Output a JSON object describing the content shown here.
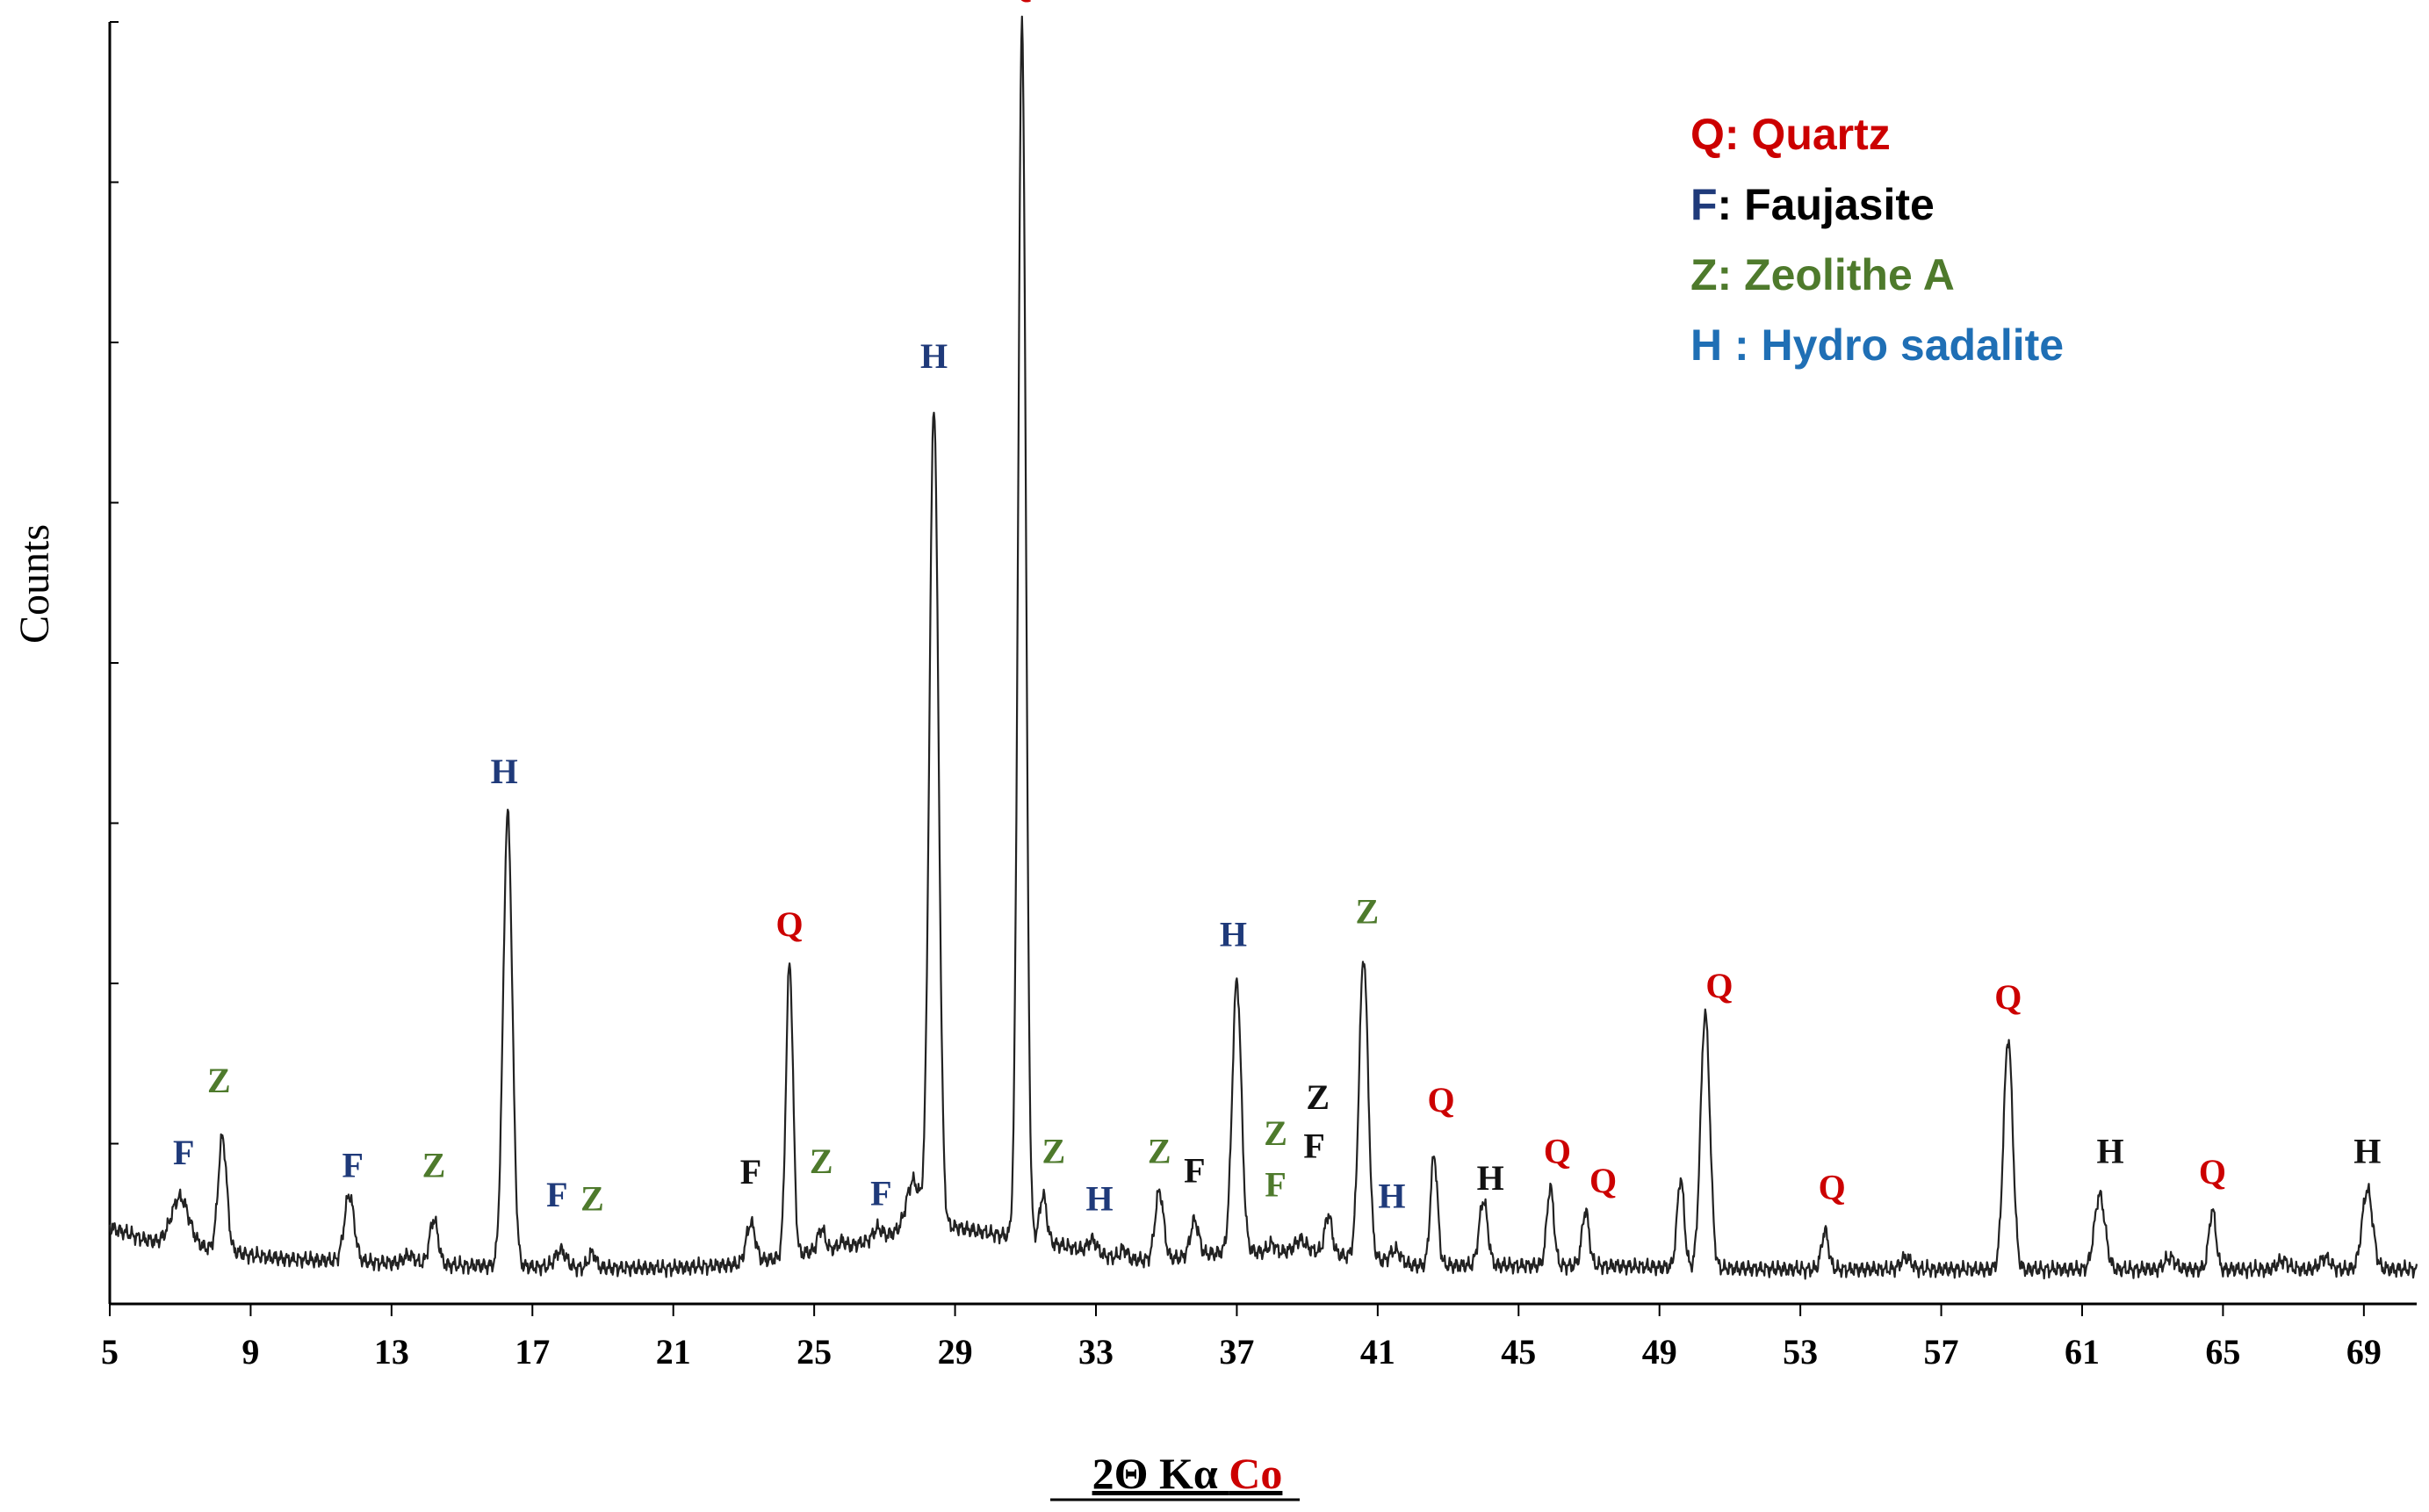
{
  "chart_data": {
    "type": "line",
    "xlabel_parts": [
      "2Θ Kα ",
      "Co"
    ],
    "ylabel": "Counts",
    "xlim": [
      5,
      70.5
    ],
    "ylim": [
      0,
      100
    ],
    "x_ticks": [
      5,
      9,
      13,
      17,
      21,
      25,
      29,
      33,
      37,
      41,
      45,
      49,
      53,
      57,
      61,
      65,
      69
    ],
    "y_minor_ticks": 8,
    "grid": false,
    "legend_position": "top-right",
    "legend": [
      {
        "text": "Q: Quartz",
        "color": "#cc0000"
      },
      {
        "prefix": "F",
        "text": ": Faujasite",
        "color": "#000000",
        "prefix_color": "#1f3a7a"
      },
      {
        "text": "Z: Zeolithe A",
        "color": "#4e7a2c"
      },
      {
        "text": "H : Hydro sadalite",
        "color": "#1f6fb5"
      }
    ],
    "colors": {
      "Q": "#cc0000",
      "F": "#1f3a7a",
      "Z": "#4e7a2c",
      "H": "#1f3a7a",
      "black": "#111111"
    },
    "baseline": [
      [
        5.0,
        6.0
      ],
      [
        6.0,
        5.0
      ],
      [
        7.0,
        4.5
      ],
      [
        8.0,
        4.3
      ],
      [
        9.0,
        3.8
      ],
      [
        10.0,
        3.5
      ],
      [
        11.0,
        3.4
      ],
      [
        12.0,
        3.3
      ],
      [
        13.0,
        3.2
      ],
      [
        14.0,
        3.1
      ],
      [
        15.0,
        3.0
      ],
      [
        17.0,
        2.9
      ],
      [
        19.0,
        2.8
      ],
      [
        21.0,
        2.8
      ],
      [
        23.0,
        3.1
      ],
      [
        24.0,
        3.6
      ],
      [
        25.0,
        4.1
      ],
      [
        26.0,
        4.5
      ],
      [
        27.0,
        5.3
      ],
      [
        28.0,
        6.2
      ],
      [
        29.0,
        6.0
      ],
      [
        30.0,
        5.5
      ],
      [
        31.0,
        5.1
      ],
      [
        32.0,
        4.6
      ],
      [
        33.0,
        3.9
      ],
      [
        34.0,
        3.4
      ],
      [
        35.0,
        3.5
      ],
      [
        36.0,
        3.8
      ],
      [
        37.0,
        4.2
      ],
      [
        38.0,
        4.0
      ],
      [
        39.0,
        4.2
      ],
      [
        40.0,
        3.8
      ],
      [
        41.0,
        3.4
      ],
      [
        42.0,
        3.0
      ],
      [
        43.0,
        3.0
      ],
      [
        45.0,
        3.0
      ],
      [
        47.0,
        3.0
      ],
      [
        50.0,
        2.8
      ],
      [
        53.0,
        2.7
      ],
      [
        57.0,
        2.7
      ],
      [
        61.0,
        2.7
      ],
      [
        65.0,
        2.7
      ],
      [
        70.5,
        2.7
      ]
    ],
    "peaks": [
      {
        "x": 7.0,
        "y": 8.3,
        "w": 0.25
      },
      {
        "x": 8.2,
        "y": 13.0,
        "w": 0.12
      },
      {
        "x": 11.8,
        "y": 8.5,
        "w": 0.14
      },
      {
        "x": 13.5,
        "y": 3.8,
        "w": 0.15
      },
      {
        "x": 14.2,
        "y": 6.6,
        "w": 0.12
      },
      {
        "x": 16.3,
        "y": 38.2,
        "w": 0.13
      },
      {
        "x": 17.8,
        "y": 4.2,
        "w": 0.15
      },
      {
        "x": 18.7,
        "y": 4.0,
        "w": 0.1
      },
      {
        "x": 23.2,
        "y": 6.3,
        "w": 0.13
      },
      {
        "x": 24.3,
        "y": 26.6,
        "w": 0.1
      },
      {
        "x": 25.2,
        "y": 5.9,
        "w": 0.1
      },
      {
        "x": 25.8,
        "y": 4.9,
        "w": 0.1
      },
      {
        "x": 26.8,
        "y": 5.9,
        "w": 0.12
      },
      {
        "x": 27.8,
        "y": 9.6,
        "w": 0.18
      },
      {
        "x": 28.4,
        "y": 70.0,
        "w": 0.13
      },
      {
        "x": 30.9,
        "y": 100.0,
        "w": 0.11
      },
      {
        "x": 31.5,
        "y": 8.5,
        "w": 0.1
      },
      {
        "x": 32.9,
        "y": 5.0,
        "w": 0.13
      },
      {
        "x": 33.8,
        "y": 4.3,
        "w": 0.1
      },
      {
        "x": 34.8,
        "y": 8.8,
        "w": 0.12
      },
      {
        "x": 35.8,
        "y": 6.5,
        "w": 0.12
      },
      {
        "x": 37.0,
        "y": 25.2,
        "w": 0.13
      },
      {
        "x": 38.0,
        "y": 4.7,
        "w": 0.1
      },
      {
        "x": 38.8,
        "y": 5.0,
        "w": 0.15
      },
      {
        "x": 39.6,
        "y": 7.0,
        "w": 0.1
      },
      {
        "x": 40.6,
        "y": 27.0,
        "w": 0.13
      },
      {
        "x": 41.5,
        "y": 4.2,
        "w": 0.15
      },
      {
        "x": 42.6,
        "y": 11.6,
        "w": 0.1
      },
      {
        "x": 44.0,
        "y": 8.1,
        "w": 0.12
      },
      {
        "x": 45.9,
        "y": 9.1,
        "w": 0.1
      },
      {
        "x": 46.9,
        "y": 7.3,
        "w": 0.1
      },
      {
        "x": 49.6,
        "y": 9.8,
        "w": 0.1
      },
      {
        "x": 50.3,
        "y": 22.7,
        "w": 0.13
      },
      {
        "x": 53.7,
        "y": 5.7,
        "w": 0.1
      },
      {
        "x": 56.0,
        "y": 3.6,
        "w": 0.15
      },
      {
        "x": 58.9,
        "y": 20.7,
        "w": 0.13
      },
      {
        "x": 61.5,
        "y": 8.5,
        "w": 0.15
      },
      {
        "x": 63.5,
        "y": 3.6,
        "w": 0.15
      },
      {
        "x": 64.7,
        "y": 7.3,
        "w": 0.1
      },
      {
        "x": 66.7,
        "y": 3.4,
        "w": 0.15
      },
      {
        "x": 67.9,
        "y": 3.6,
        "w": 0.15
      },
      {
        "x": 69.1,
        "y": 8.9,
        "w": 0.15
      }
    ],
    "annotations": [
      {
        "text": "F",
        "x": 7.1,
        "y": 10.9,
        "c": "F"
      },
      {
        "text": "Z",
        "x": 8.1,
        "y": 16.5,
        "c": "Z"
      },
      {
        "text": "F",
        "x": 11.9,
        "y": 9.9,
        "c": "F"
      },
      {
        "text": "Z",
        "x": 14.2,
        "y": 9.9,
        "c": "Z"
      },
      {
        "text": "H",
        "x": 16.2,
        "y": 40.6,
        "c": "H"
      },
      {
        "text": "F",
        "x": 17.7,
        "y": 7.6,
        "c": "F"
      },
      {
        "text": "Z",
        "x": 18.7,
        "y": 7.3,
        "c": "Z"
      },
      {
        "text": "F",
        "x": 23.2,
        "y": 9.4,
        "c": "black"
      },
      {
        "text": "Q",
        "x": 24.3,
        "y": 28.7,
        "c": "Q"
      },
      {
        "text": "Z",
        "x": 25.2,
        "y": 10.2,
        "c": "Z"
      },
      {
        "text": "F",
        "x": 26.9,
        "y": 7.7,
        "c": "F"
      },
      {
        "text": "H",
        "x": 28.4,
        "y": 73.0,
        "c": "H"
      },
      {
        "text": "Q",
        "x": 30.8,
        "y": 102.0,
        "c": "Q"
      },
      {
        "text": "Z",
        "x": 31.8,
        "y": 11.0,
        "c": "Z"
      },
      {
        "text": "H",
        "x": 33.1,
        "y": 7.3,
        "c": "H"
      },
      {
        "text": "Z",
        "x": 34.8,
        "y": 11.0,
        "c": "Z"
      },
      {
        "text": "F",
        "x": 35.8,
        "y": 9.5,
        "c": "black"
      },
      {
        "text": "H",
        "x": 36.9,
        "y": 27.9,
        "c": "H"
      },
      {
        "text": "Z",
        "x": 38.1,
        "y": 12.4,
        "c": "Z"
      },
      {
        "text": "F",
        "x": 38.1,
        "y": 8.4,
        "c": "Z"
      },
      {
        "text": "Z",
        "x": 39.3,
        "y": 15.2,
        "c": "black"
      },
      {
        "text": "F",
        "x": 39.2,
        "y": 11.4,
        "c": "black"
      },
      {
        "text": "Z",
        "x": 40.7,
        "y": 29.7,
        "c": "Z"
      },
      {
        "text": "H",
        "x": 41.4,
        "y": 7.5,
        "c": "H"
      },
      {
        "text": "Q",
        "x": 42.8,
        "y": 15.0,
        "c": "Q"
      },
      {
        "text": "H",
        "x": 44.2,
        "y": 8.9,
        "c": "black"
      },
      {
        "text": "Q",
        "x": 46.1,
        "y": 11.0,
        "c": "Q"
      },
      {
        "text": "Q",
        "x": 47.4,
        "y": 8.7,
        "c": "Q"
      },
      {
        "text": "Q",
        "x": 50.7,
        "y": 23.9,
        "c": "Q"
      },
      {
        "text": "Q",
        "x": 53.9,
        "y": 8.2,
        "c": "Q"
      },
      {
        "text": "Q",
        "x": 58.9,
        "y": 23.0,
        "c": "Q"
      },
      {
        "text": "H",
        "x": 61.8,
        "y": 11.0,
        "c": "black"
      },
      {
        "text": "Q",
        "x": 64.7,
        "y": 9.4,
        "c": "Q"
      },
      {
        "text": "H",
        "x": 69.1,
        "y": 11.0,
        "c": "black"
      }
    ]
  }
}
